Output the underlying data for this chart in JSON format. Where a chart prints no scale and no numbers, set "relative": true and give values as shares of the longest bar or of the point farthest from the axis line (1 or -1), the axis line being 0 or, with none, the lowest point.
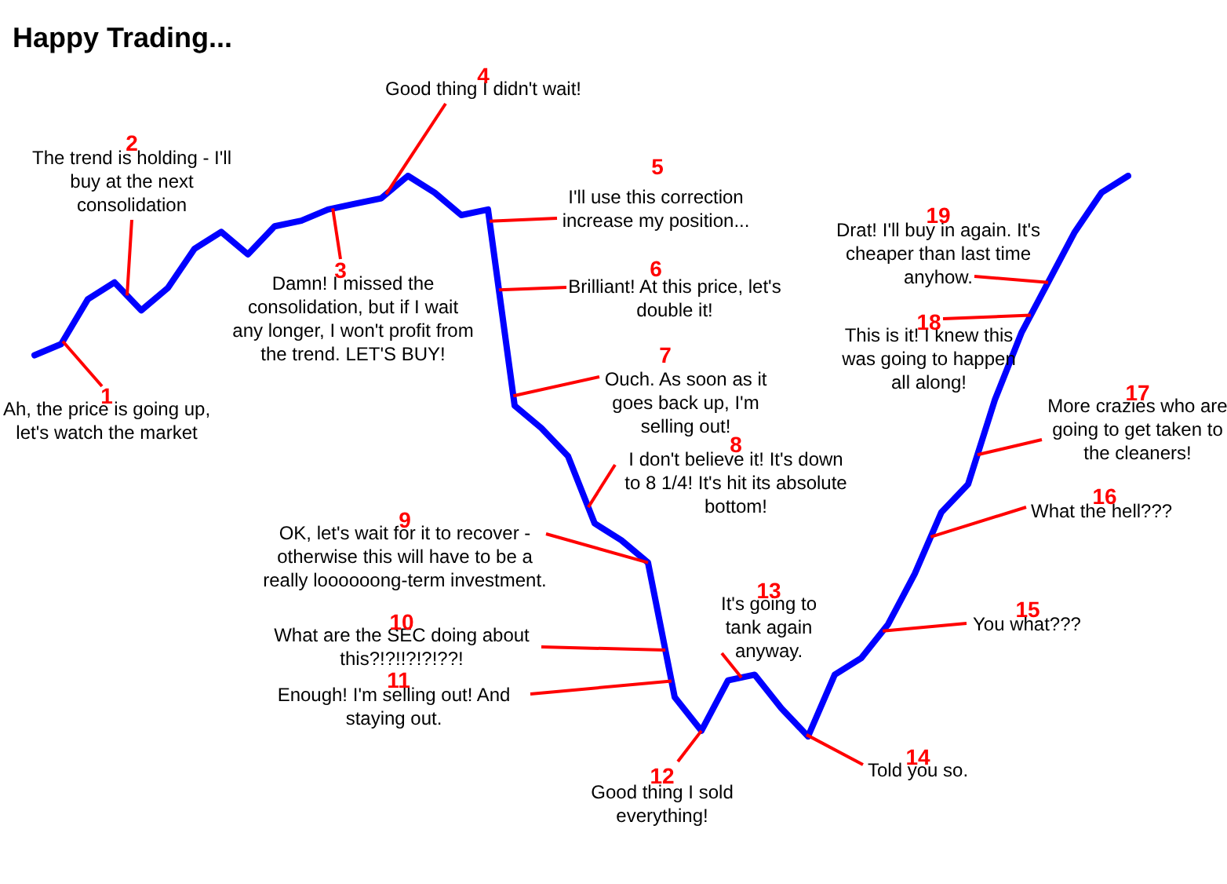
{
  "chart_data": {
    "type": "line",
    "title": "Happy Trading...",
    "relative": true,
    "marker": "none",
    "line_style": "solid",
    "categories": [
      null,
      null,
      null,
      null,
      null,
      null,
      null,
      null,
      null,
      null,
      null,
      null,
      null,
      null,
      null,
      null,
      null,
      null,
      null,
      null,
      null,
      null,
      null,
      null,
      null,
      null,
      null,
      null,
      null,
      null,
      null,
      null,
      null,
      null,
      null,
      null,
      null,
      null,
      null,
      null,
      null,
      null
    ],
    "series": [
      {
        "color": "#0000ff",
        "values": [
          0.68,
          0.7,
          0.78,
          0.81,
          0.76,
          0.8,
          0.87,
          0.9,
          0.86,
          0.91,
          0.92,
          0.94,
          0.95,
          0.96,
          1.0,
          0.97,
          0.93,
          0.94,
          0.59,
          0.55,
          0.5,
          0.38,
          0.35,
          0.31,
          0.07,
          0.01,
          0.1,
          0.11,
          0.05,
          0,
          0.11,
          0.14,
          0.2,
          0.29,
          0.4,
          0.45,
          0.6,
          0.72,
          0.81,
          0.9,
          0.97,
          1.0
        ]
      }
    ],
    "annotations": [
      "1",
      "Ah, the price is going up,\nlet's watch the market",
      "2",
      "The trend is holding - I'll\nbuy at the next\nconsolidation",
      "3",
      "Damn! I missed the\nconsolidation, but if I wait\nany longer, I won't profit from\nthe trend. LET'S BUY!",
      "4",
      "Good thing I didn't wait!",
      "5",
      "I'll use this correction\nincrease my position...",
      "6",
      "Brilliant! At this price, let's\ndouble it!",
      "7",
      "Ouch. As soon as it\ngoes back up, I'm\nselling out!",
      "8",
      "I don't believe it! It's down\nto 8 1/4! It's hit its absolute\nbottom!",
      "9",
      "OK, let's wait for it to recover -\notherwise this will have to be a\nreally loooooong-term investment.",
      "10",
      "What are the SEC doing about\nthis?!?!!?!?!??!",
      "11",
      "Enough! I'm selling out! And\nstaying out.",
      "12",
      "Good thing I sold\neverything!",
      "13",
      "It's going to\ntank again\nanyway.",
      "14",
      "Told you so.",
      "15",
      "You what???",
      "16",
      "What the hell???",
      "17",
      "More crazies who are\ngoing to get taken to\nthe cleaners!",
      "18",
      "This is it! I knew this\nwas going to happen\nall along!",
      "19",
      "Drat! I'll buy in again. It's\ncheaper than last time\nanyhow."
    ]
  }
}
